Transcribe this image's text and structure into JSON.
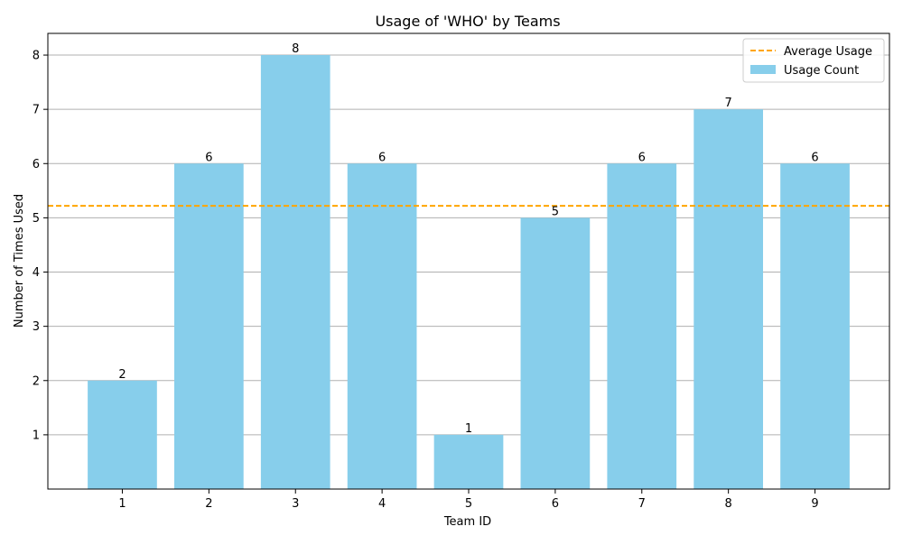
{
  "chart_data": {
    "type": "bar",
    "title": "Usage of 'WHO' by Teams",
    "xlabel": "Team ID",
    "ylabel": "Number of Times Used",
    "categories": [
      "1",
      "2",
      "3",
      "4",
      "5",
      "6",
      "7",
      "8",
      "9"
    ],
    "series": [
      {
        "name": "Usage Count",
        "values": [
          2,
          6,
          8,
          6,
          1,
          5,
          6,
          7,
          6
        ],
        "color": "#87CEEB"
      }
    ],
    "average": {
      "name": "Average Usage",
      "value": 5.22,
      "color": "#FFA500",
      "style": "dashed"
    },
    "y_ticks": [
      1,
      2,
      3,
      4,
      5,
      6,
      7,
      8
    ],
    "ylim": [
      0,
      8.4
    ],
    "grid": {
      "y": true,
      "x": false,
      "color": "#b0b0b0"
    },
    "legend_position": "top-right"
  }
}
